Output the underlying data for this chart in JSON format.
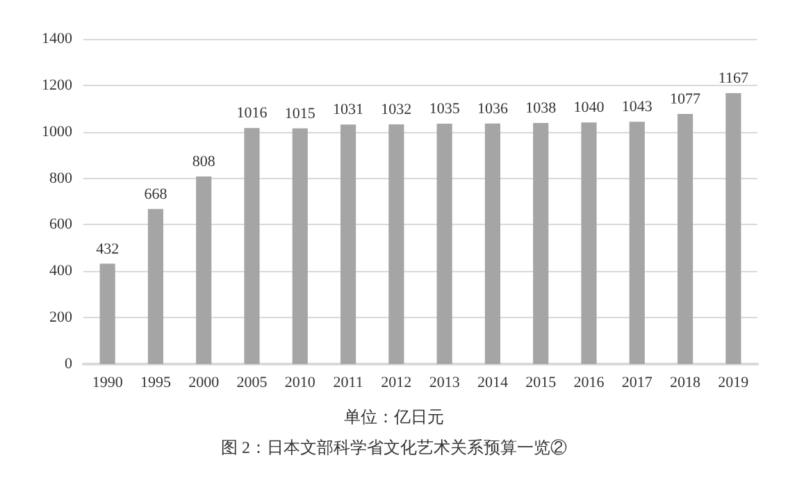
{
  "chart_data": {
    "type": "bar",
    "categories": [
      "1990",
      "1995",
      "2000",
      "2005",
      "2010",
      "2011",
      "2012",
      "2013",
      "2014",
      "2015",
      "2016",
      "2017",
      "2018",
      "2019"
    ],
    "values": [
      432,
      668,
      808,
      1016,
      1015,
      1031,
      1032,
      1035,
      1036,
      1038,
      1040,
      1043,
      1077,
      1167
    ],
    "color": "#a5a5a5",
    "ylim": [
      0,
      1400
    ],
    "yticks": [
      0,
      200,
      400,
      600,
      800,
      1000,
      1200,
      1400
    ],
    "grid": "y",
    "data_labels": true,
    "annotations": [
      "单位：亿日元",
      "图 2：日本文部科学省文化艺术关系预算一览②"
    ]
  }
}
